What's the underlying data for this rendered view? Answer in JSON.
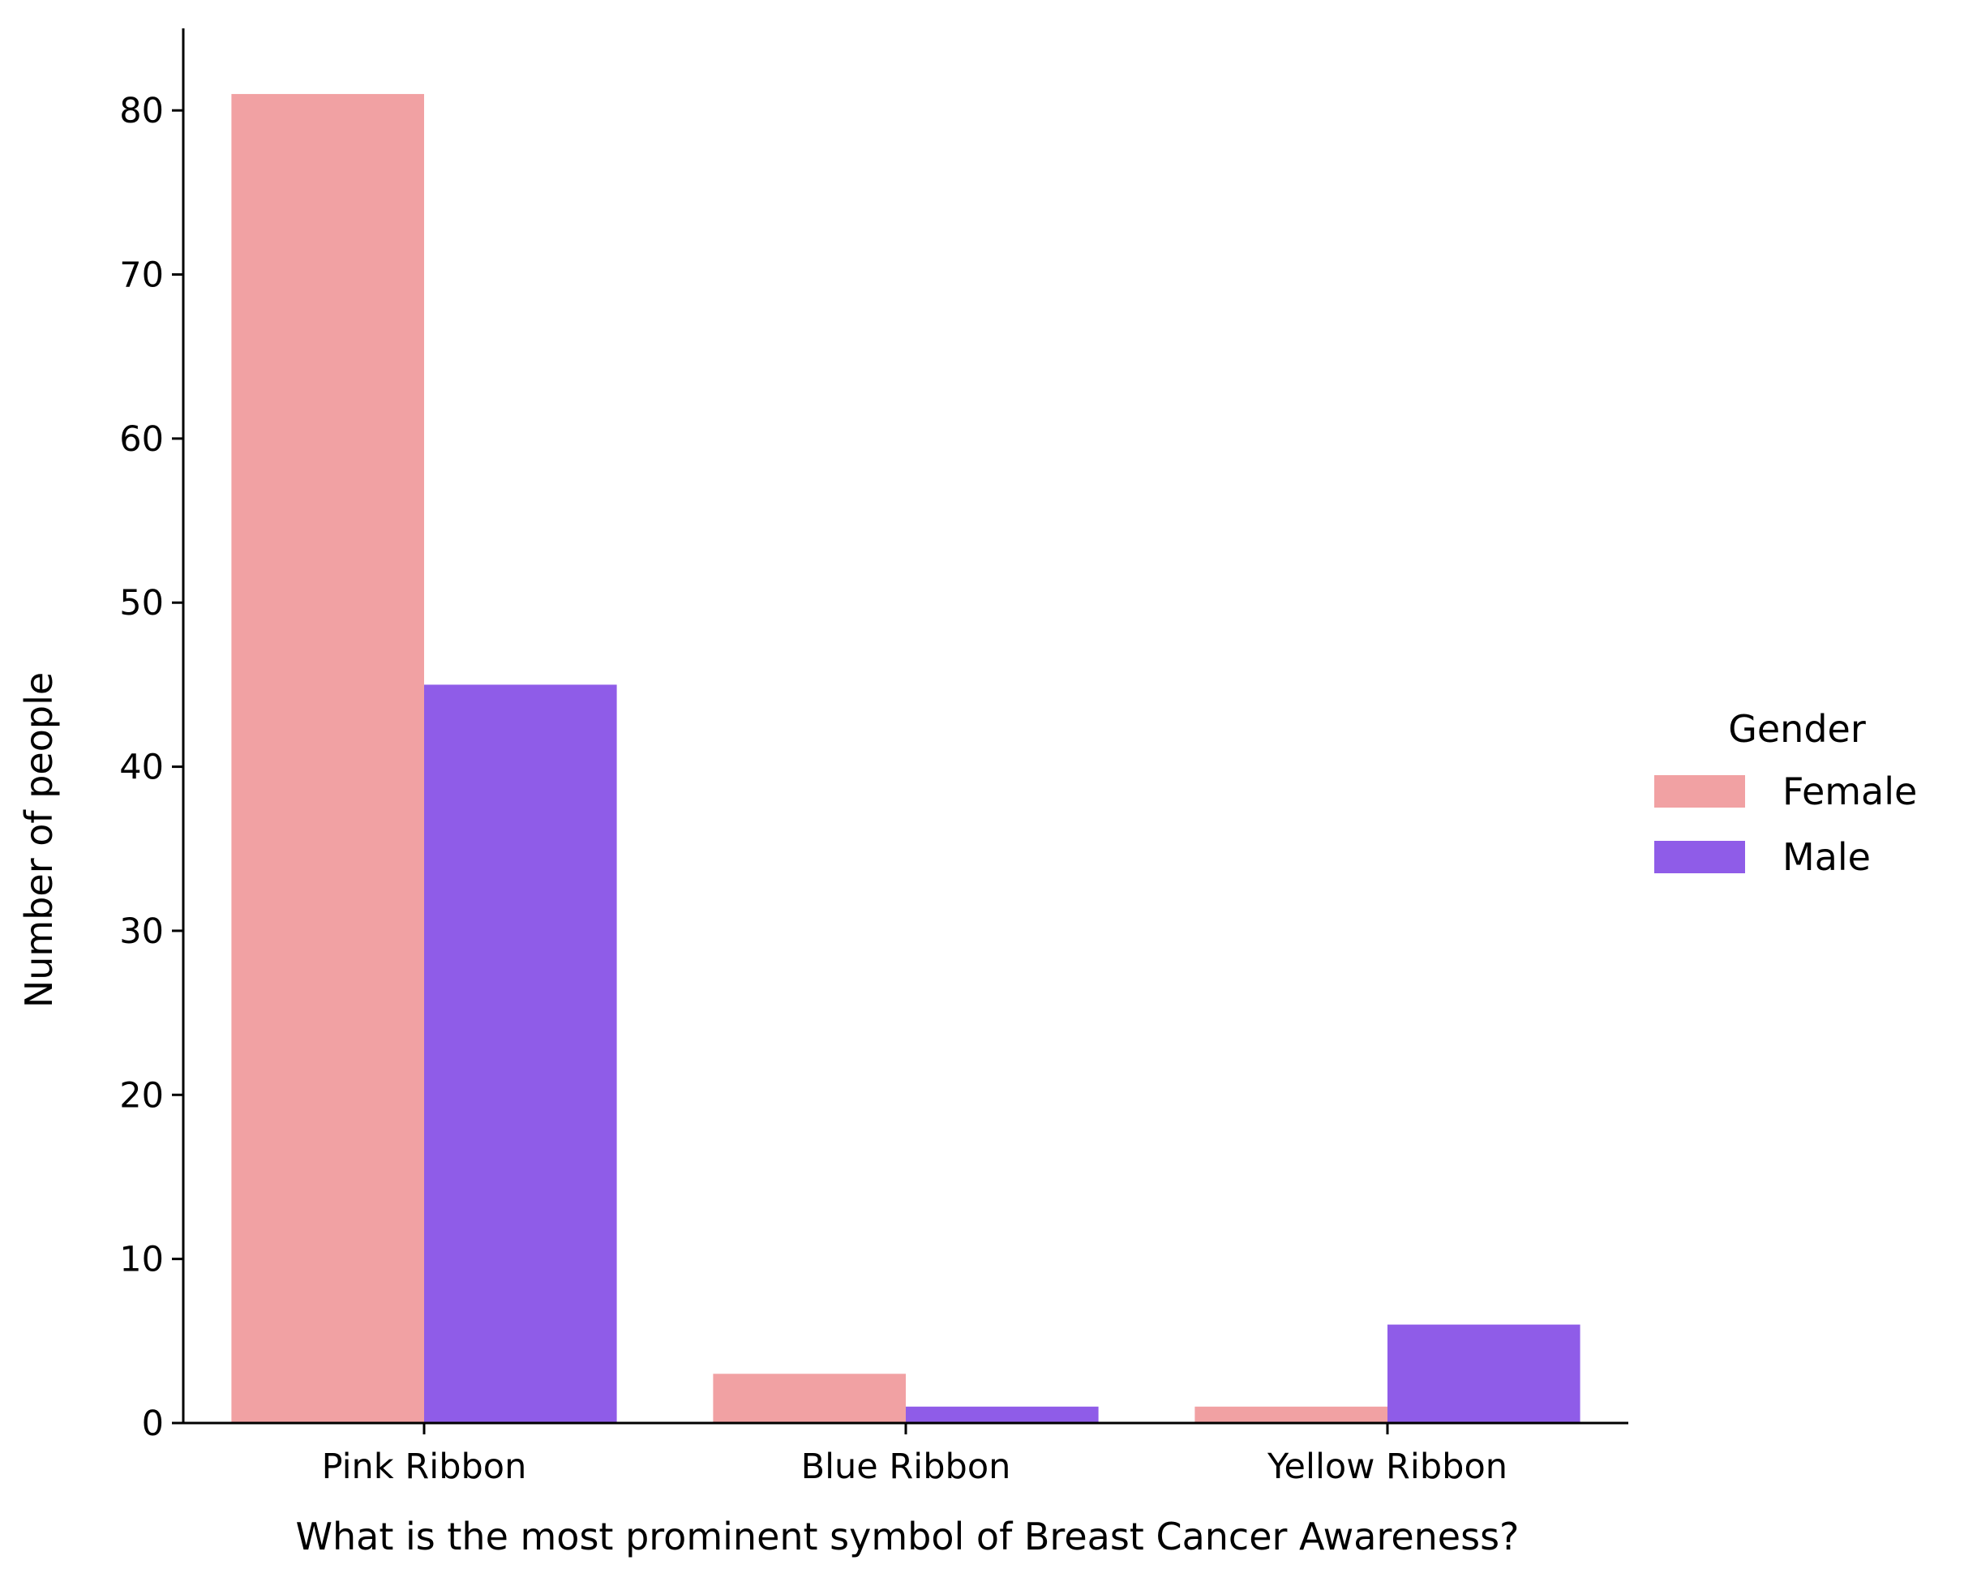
{
  "chart_data": {
    "type": "bar",
    "categories": [
      "Pink Ribbon",
      "Blue Ribbon",
      "Yellow Ribbon"
    ],
    "series": [
      {
        "name": "Female",
        "values": [
          81,
          3,
          1
        ],
        "color": "#f1a1a3"
      },
      {
        "name": "Male",
        "values": [
          45,
          1,
          6
        ],
        "color": "#8f5ce8"
      }
    ],
    "title": "",
    "xlabel": "What is the most prominent symbol of Breast Cancer Awareness?",
    "ylabel": "Number of people",
    "ylim": [
      0,
      85
    ],
    "yticks": [
      0,
      10,
      20,
      30,
      40,
      50,
      60,
      70,
      80
    ],
    "legend": {
      "title": "Gender",
      "placement": "right"
    },
    "grid": false
  }
}
